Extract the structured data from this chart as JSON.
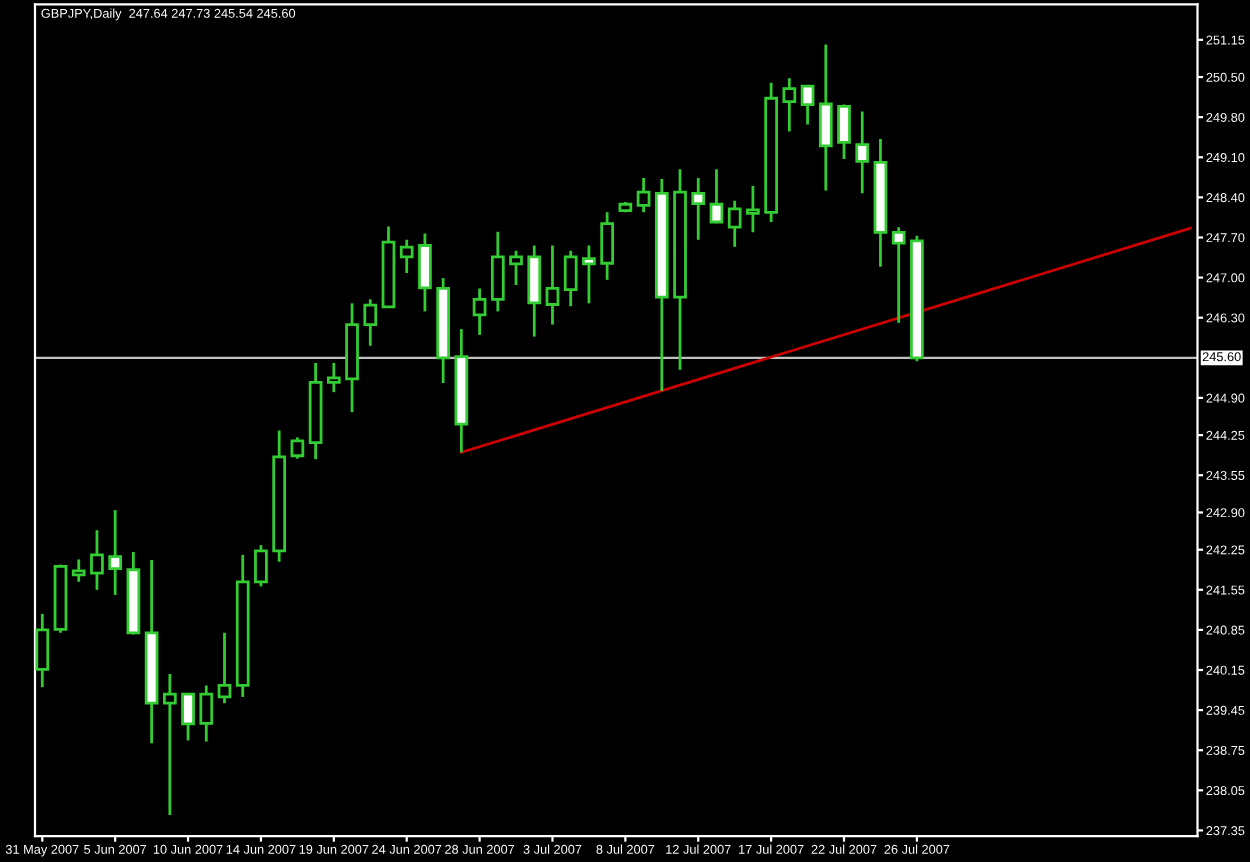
{
  "chart_data": {
    "type": "candlestick",
    "title": "GBPJPY,Daily  247.64 247.73 245.54 245.60",
    "categories": [
      "31 May 2007",
      null,
      null,
      null,
      "5 Jun 2007",
      null,
      null,
      null,
      "10 Jun 2007",
      null,
      null,
      null,
      "14 Jun 2007",
      null,
      null,
      null,
      "19 Jun 2007",
      null,
      null,
      null,
      "24 Jun 2007",
      null,
      null,
      null,
      "28 Jun 2007",
      null,
      null,
      null,
      "3 Jul 2007",
      null,
      null,
      null,
      "8 Jul 2007",
      null,
      null,
      null,
      "12 Jul 2007",
      null,
      null,
      null,
      "17 Jul 2007",
      null,
      null,
      null,
      "22 Jul 2007",
      null,
      null,
      null,
      "26 Jul 2007",
      null,
      null,
      null,
      null,
      null,
      null,
      null,
      null,
      null,
      null,
      null,
      null,
      null,
      null,
      null
    ],
    "color": "#33cc33",
    "ohlc": [
      [
        240.16,
        241.13,
        239.85,
        240.85
      ],
      [
        240.86,
        241.99,
        240.8,
        241.96
      ],
      [
        241.81,
        242.08,
        241.69,
        241.88
      ],
      [
        241.84,
        242.59,
        241.55,
        242.16
      ],
      [
        242.13,
        242.94,
        241.46,
        241.92
      ],
      [
        241.9,
        242.21,
        240.77,
        240.8
      ],
      [
        240.8,
        242.07,
        238.87,
        239.57
      ],
      [
        239.57,
        240.08,
        237.62,
        239.73
      ],
      [
        239.73,
        239.75,
        238.92,
        239.21
      ],
      [
        239.22,
        239.88,
        238.9,
        239.73
      ],
      [
        239.68,
        240.8,
        239.57,
        239.88
      ],
      [
        239.88,
        242.16,
        239.68,
        241.69
      ],
      [
        241.69,
        242.33,
        241.61,
        242.23
      ],
      [
        242.23,
        244.33,
        242.04,
        243.87
      ],
      [
        243.89,
        244.21,
        243.84,
        244.15
      ],
      [
        244.12,
        245.51,
        243.83,
        245.17
      ],
      [
        245.17,
        245.51,
        245.0,
        245.25
      ],
      [
        245.23,
        246.55,
        244.65,
        246.18
      ],
      [
        246.18,
        246.62,
        245.81,
        246.52
      ],
      [
        246.49,
        247.89,
        246.47,
        247.62
      ],
      [
        247.36,
        247.66,
        247.08,
        247.53
      ],
      [
        247.56,
        247.77,
        246.41,
        246.82
      ],
      [
        246.81,
        246.99,
        245.16,
        245.6
      ],
      [
        245.62,
        246.1,
        243.95,
        244.44
      ],
      [
        246.35,
        246.81,
        246.0,
        246.62
      ],
      [
        246.62,
        247.8,
        246.41,
        247.36
      ],
      [
        247.24,
        247.47,
        246.87,
        247.36
      ],
      [
        247.36,
        247.56,
        245.97,
        246.56
      ],
      [
        246.53,
        247.56,
        246.18,
        246.81
      ],
      [
        246.79,
        247.47,
        246.5,
        247.36
      ],
      [
        247.33,
        247.56,
        246.55,
        247.24
      ],
      [
        247.25,
        248.14,
        246.96,
        247.94
      ],
      [
        248.17,
        248.32,
        248.14,
        248.28
      ],
      [
        248.26,
        248.74,
        248.14,
        248.49
      ],
      [
        248.47,
        248.72,
        245.02,
        246.66
      ],
      [
        246.66,
        248.89,
        245.39,
        248.49
      ],
      [
        248.47,
        248.74,
        247.66,
        248.29
      ],
      [
        248.28,
        248.89,
        247.95,
        247.97
      ],
      [
        247.88,
        248.34,
        247.54,
        248.2
      ],
      [
        248.12,
        248.6,
        247.79,
        248.18
      ],
      [
        248.14,
        250.4,
        247.97,
        250.13
      ],
      [
        250.07,
        250.48,
        249.55,
        250.3
      ],
      [
        250.34,
        250.36,
        249.67,
        250.02
      ],
      [
        250.03,
        251.07,
        248.52,
        249.3
      ],
      [
        249.99,
        250.02,
        249.07,
        249.36
      ],
      [
        249.32,
        249.9,
        248.47,
        249.03
      ],
      [
        249.01,
        249.42,
        247.19,
        247.79
      ],
      [
        247.79,
        247.88,
        246.21,
        247.6
      ],
      [
        247.64,
        247.73,
        245.54,
        245.6
      ],
      null,
      null,
      null,
      null,
      null,
      null,
      null,
      null,
      null,
      null,
      null,
      null,
      null,
      null,
      null
    ],
    "series": [
      {
        "type": "line",
        "color": "#cc0000",
        "values": [
          null,
          null,
          null,
          null,
          null,
          null,
          null,
          null,
          null,
          null,
          null,
          null,
          null,
          null,
          null,
          null,
          null,
          null,
          null,
          null,
          null,
          null,
          null,
          243.95,
          null,
          null,
          null,
          null,
          null,
          null,
          null,
          null,
          null,
          null,
          null,
          null,
          null,
          null,
          null,
          null,
          null,
          null,
          null,
          null,
          null,
          null,
          null,
          null,
          null,
          null,
          null,
          null,
          null,
          null,
          null,
          null,
          null,
          null,
          null,
          null,
          null,
          null,
          null,
          247.86
        ]
      }
    ],
    "ylim": [
      237.25,
      251.77
    ],
    "yticks": [
      237.35,
      238.05,
      238.75,
      239.45,
      240.15,
      240.85,
      241.55,
      242.25,
      {
        "value": 242.9,
        "label": "242.90"
      },
      243.55,
      244.25,
      {
        "value": 244.9,
        "label": "244.90"
      },
      {
        "value": 246.3,
        "label": "246.30"
      },
      {
        "value": 247,
        "label": "247.00"
      },
      {
        "value": 247.7,
        "label": "247.70"
      },
      {
        "value": 248.4,
        "label": "248.40"
      },
      {
        "value": 249.1,
        "label": "249.10"
      },
      {
        "value": 249.8,
        "label": "249.80"
      },
      {
        "value": 250.5,
        "label": "250.50"
      },
      251.15
    ],
    "ref_lines": [
      {
        "axis": "y",
        "value": 245.6,
        "label": "245.60",
        "color": "#c0c0c0"
      }
    ],
    "grid": false,
    "legend": false
  }
}
